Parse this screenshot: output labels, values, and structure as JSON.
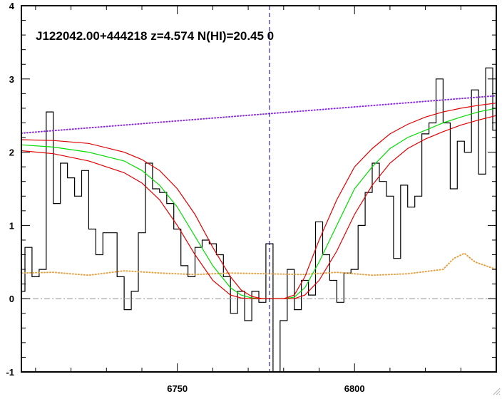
{
  "chart_data": {
    "type": "line",
    "title": "J122042.00+444218 z=4.574 N(HI)=20.45 0",
    "xlabel": "",
    "ylabel": "",
    "xlim": [
      6706,
      6840
    ],
    "ylim": [
      -1,
      4
    ],
    "xticks": [
      6750,
      6800
    ],
    "yticks": [
      -1,
      0,
      1,
      2,
      3,
      4
    ],
    "grid": false,
    "legend": "none",
    "center_line_x": 6776,
    "series": [
      {
        "style": "step",
        "color": "#000000",
        "x": [
          6706,
          6708,
          6710,
          6712,
          6714,
          6716,
          6718,
          6720,
          6722,
          6724,
          6726,
          6728,
          6730,
          6732,
          6734,
          6736,
          6738,
          6740,
          6742,
          6744,
          6746,
          6748,
          6750,
          6752,
          6754,
          6756,
          6758,
          6760,
          6762,
          6764,
          6766,
          6768,
          6770,
          6772,
          6774,
          6776,
          6778,
          6780,
          6782,
          6784,
          6786,
          6788,
          6790,
          6792,
          6794,
          6796,
          6798,
          6800,
          6802,
          6804,
          6806,
          6808,
          6810,
          6812,
          6814,
          6816,
          6818,
          6820,
          6822,
          6824,
          6826,
          6828,
          6830,
          6832,
          6834,
          6836,
          6838,
          6840
        ],
        "y": [
          0.1,
          0.7,
          0.3,
          0.4,
          2.55,
          1.3,
          1.85,
          1.65,
          1.4,
          1.75,
          0.95,
          0.6,
          0.9,
          0.9,
          0.3,
          -0.15,
          0.1,
          0.9,
          1.85,
          1.5,
          1.45,
          1.3,
          0.95,
          0.45,
          0.3,
          0.7,
          0.8,
          0.75,
          0.6,
          0.3,
          -0.2,
          0.1,
          -0.3,
          0.1,
          -0.05,
          0.75,
          -1.0,
          -0.3,
          0.4,
          -0.15,
          0.25,
          0.05,
          1.05,
          0.6,
          0.25,
          -0.05,
          0.35,
          0.4,
          1.0,
          1.45,
          1.85,
          1.6,
          1.4,
          0.55,
          1.55,
          1.25,
          1.4,
          2.25,
          2.4,
          3.0,
          2.4,
          1.5,
          2.15,
          2.0,
          2.85,
          1.7,
          3.15,
          2.3
        ]
      },
      {
        "style": "dotted",
        "color": "#8a2be2",
        "x": [
          6706,
          6840
        ],
        "y": [
          2.26,
          2.77
        ]
      },
      {
        "style": "dotted",
        "color": "#e8a040",
        "x": [
          6706,
          6715,
          6725,
          6735,
          6745,
          6755,
          6765,
          6775,
          6785,
          6795,
          6805,
          6815,
          6825,
          6828,
          6831,
          6834,
          6837,
          6840
        ],
        "y": [
          0.35,
          0.36,
          0.32,
          0.38,
          0.35,
          0.33,
          0.35,
          0.34,
          0.33,
          0.36,
          0.32,
          0.34,
          0.4,
          0.55,
          0.62,
          0.5,
          0.45,
          0.4
        ]
      },
      {
        "style": "dashdot",
        "color": "#a0a0a0",
        "x": [
          6706,
          6840
        ],
        "y": [
          0,
          0
        ]
      },
      {
        "style": "solid",
        "color": "#00dd00",
        "x": [
          6706,
          6715,
          6725,
          6735,
          6740,
          6745,
          6750,
          6755,
          6760,
          6765,
          6768,
          6771,
          6774,
          6777,
          6780,
          6783,
          6786,
          6790,
          6795,
          6800,
          6805,
          6810,
          6815,
          6820,
          6825,
          6830,
          6835,
          6840
        ],
        "y": [
          2.1,
          2.07,
          2.0,
          1.88,
          1.75,
          1.55,
          1.25,
          0.85,
          0.45,
          0.15,
          0.05,
          0.01,
          0.0,
          0.0,
          0.0,
          0.02,
          0.15,
          0.5,
          1.0,
          1.5,
          1.8,
          2.05,
          2.2,
          2.3,
          2.4,
          2.48,
          2.55,
          2.6
        ]
      },
      {
        "style": "solid",
        "color": "#e00000",
        "x": [
          6706,
          6715,
          6725,
          6735,
          6740,
          6745,
          6750,
          6755,
          6760,
          6765,
          6768,
          6771,
          6774,
          6777,
          6780,
          6783,
          6786,
          6790,
          6795,
          6800,
          6805,
          6810,
          6815,
          6820,
          6825,
          6830,
          6835,
          6840
        ],
        "y": [
          2.17,
          2.16,
          2.12,
          2.0,
          1.9,
          1.75,
          1.5,
          1.15,
          0.7,
          0.3,
          0.12,
          0.03,
          0.0,
          0.0,
          0.0,
          0.05,
          0.3,
          0.8,
          1.35,
          1.8,
          2.05,
          2.25,
          2.38,
          2.48,
          2.55,
          2.6,
          2.64,
          2.67
        ]
      },
      {
        "style": "solid",
        "color": "#e00000",
        "x": [
          6706,
          6715,
          6725,
          6735,
          6740,
          6745,
          6750,
          6755,
          6760,
          6765,
          6768,
          6771,
          6774,
          6777,
          6780,
          6783,
          6786,
          6790,
          6795,
          6800,
          6805,
          6810,
          6815,
          6820,
          6825,
          6830,
          6835,
          6840
        ],
        "y": [
          2.02,
          1.98,
          1.88,
          1.72,
          1.58,
          1.35,
          1.0,
          0.6,
          0.25,
          0.05,
          0.01,
          0.0,
          0.0,
          0.0,
          0.0,
          0.0,
          0.05,
          0.25,
          0.65,
          1.15,
          1.55,
          1.85,
          2.05,
          2.18,
          2.28,
          2.37,
          2.44,
          2.5
        ]
      }
    ]
  },
  "window": {
    "resize_grip_icon": "resize-grip-icon"
  }
}
